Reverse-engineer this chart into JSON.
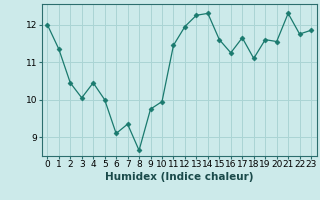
{
  "x": [
    0,
    1,
    2,
    3,
    4,
    5,
    6,
    7,
    8,
    9,
    10,
    11,
    12,
    13,
    14,
    15,
    16,
    17,
    18,
    19,
    20,
    21,
    22,
    23
  ],
  "y": [
    12.0,
    11.35,
    10.45,
    10.05,
    10.45,
    10.0,
    9.1,
    9.35,
    8.65,
    9.75,
    9.95,
    11.45,
    11.95,
    12.25,
    12.3,
    11.6,
    11.25,
    11.65,
    11.1,
    11.6,
    11.55,
    12.3,
    11.75,
    11.85
  ],
  "line_color": "#1a7a6e",
  "marker": "D",
  "marker_size": 2.5,
  "bg_color": "#cceaea",
  "grid_color": "#aad4d4",
  "xlabel": "Humidex (Indice chaleur)",
  "xlim": [
    -0.5,
    23.5
  ],
  "ylim": [
    8.5,
    12.55
  ],
  "yticks": [
    9,
    10,
    11,
    12
  ],
  "xticks": [
    0,
    1,
    2,
    3,
    4,
    5,
    6,
    7,
    8,
    9,
    10,
    11,
    12,
    13,
    14,
    15,
    16,
    17,
    18,
    19,
    20,
    21,
    22,
    23
  ],
  "xlabel_fontsize": 7.5,
  "tick_fontsize": 6.5,
  "spine_color": "#2c6e6e"
}
